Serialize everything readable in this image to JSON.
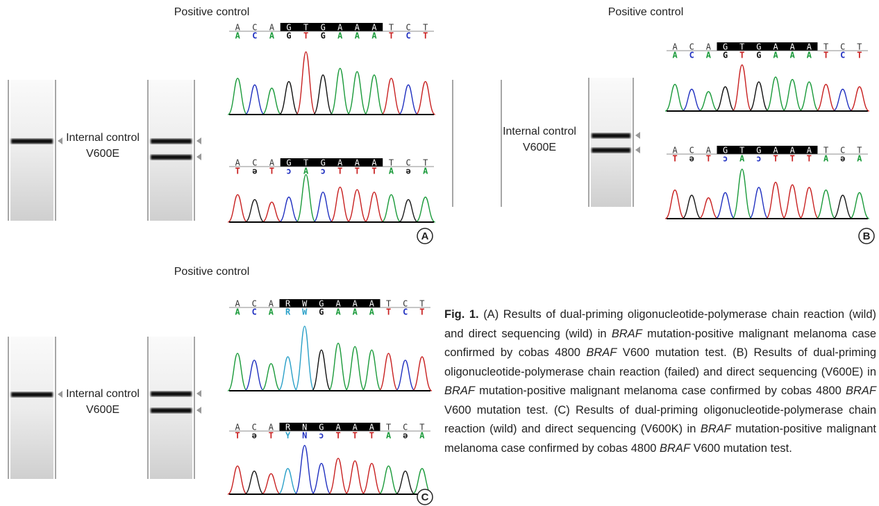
{
  "panels": [
    {
      "label": "A",
      "positive_control": "Positive control",
      "internal_control": "Internal control",
      "mutation": "V600E",
      "highlight": [
        3,
        8
      ],
      "sequences": [
        {
          "reference": [
            "A",
            "C",
            "A",
            "G",
            "T",
            "G",
            "A",
            "A",
            "A",
            "T",
            "C",
            "T"
          ],
          "call": [
            "A",
            "C",
            "A",
            "G",
            "T",
            "G",
            "A",
            "A",
            "A",
            "T",
            "C",
            "T"
          ]
        },
        {
          "reference": [
            "A",
            "C",
            "A",
            "G",
            "T",
            "G",
            "A",
            "A",
            "A",
            "T",
            "C",
            "T"
          ],
          "call": [
            "T",
            "ə",
            "T",
            "ɔ",
            "A",
            "ɔ",
            "T",
            "T",
            "T",
            "A",
            "ə",
            "A"
          ]
        }
      ]
    },
    {
      "label": "B",
      "positive_control": "Positive control",
      "internal_control": "Internal control",
      "mutation": "V600E",
      "highlight": [
        3,
        8
      ],
      "sequences": [
        {
          "reference": [
            "A",
            "C",
            "A",
            "G",
            "T",
            "G",
            "A",
            "A",
            "A",
            "T",
            "C",
            "T"
          ],
          "call": [
            "A",
            "C",
            "A",
            "G",
            "T",
            "G",
            "A",
            "A",
            "A",
            "T",
            "C",
            "T"
          ]
        },
        {
          "reference": [
            "A",
            "C",
            "A",
            "G",
            "T",
            "G",
            "A",
            "A",
            "A",
            "T",
            "C",
            "T"
          ],
          "call": [
            "T",
            "ə",
            "T",
            "ɔ",
            "A",
            "ɔ",
            "T",
            "T",
            "T",
            "A",
            "ə",
            "A"
          ]
        }
      ]
    },
    {
      "label": "C",
      "positive_control": "Positive control",
      "internal_control": "Internal control",
      "mutation": "V600E",
      "highlight": [
        3,
        8
      ],
      "sequences": [
        {
          "reference": [
            "A",
            "C",
            "A",
            "R",
            "W",
            "G",
            "A",
            "A",
            "A",
            "T",
            "C",
            "T"
          ],
          "call": [
            "A",
            "C",
            "A",
            "R",
            "W",
            "G",
            "A",
            "A",
            "A",
            "T",
            "C",
            "T"
          ]
        },
        {
          "reference": [
            "A",
            "C",
            "A",
            "R",
            "N",
            "G",
            "A",
            "A",
            "A",
            "T",
            "C",
            "T"
          ],
          "call": [
            "T",
            "ə",
            "T",
            "Y",
            "N",
            "ɔ",
            "T",
            "T",
            "T",
            "A",
            "ə",
            "A"
          ]
        }
      ]
    }
  ],
  "caption": {
    "label": "Fig. 1.",
    "text": [
      "(A) Results of dual-priming oligonucleotide-polymerase chain reaction (wild) and direct sequencing (wild) in ",
      "BRAF",
      " mutation-positive malignant melanoma case confirmed by cobas 4800 ",
      "BRAF",
      " V600 mutation test. (B) Results of dual-priming oligonucleotide-polymerase chain reaction (failed) and direct sequencing (V600E) in ",
      "BRAF",
      " mutation-positive malignant melanoma case confirmed by cobas 4800 ",
      "BRAF",
      " V600 mutation test. (C) Results of dual-priming oligonucleotide-polymerase chain reaction (wild) and direct sequencing (V600K) in ",
      "BRAF",
      " mutation-positive malignant melanoma case confirmed by cobas 4800 ",
      "BRAF",
      " V600 mutation test."
    ]
  }
}
